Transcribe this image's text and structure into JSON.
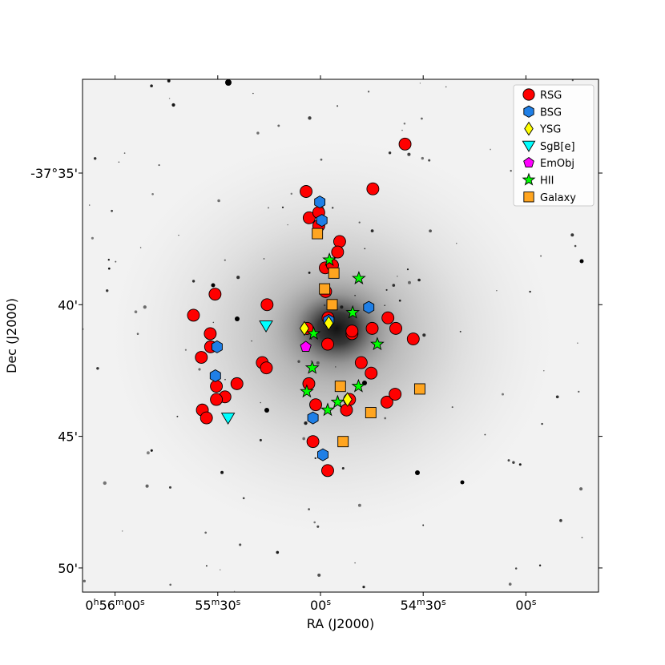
{
  "chart_data": {
    "type": "scatter",
    "title": "",
    "xlabel": "RA (J2000)",
    "ylabel": "Dec (J2000)",
    "background": "grayscale galaxy image",
    "x_unit": "seconds of RA offset from 0h56m00s (increasing to the west)",
    "y_unit": "arcminutes below -37°",
    "xlim": [
      0,
      121
    ],
    "ylim": [
      33.4,
      51.9
    ],
    "x_ticks": [
      {
        "value": 0,
        "label": "0h56m00s"
      },
      {
        "value": 30,
        "label": "55m30s"
      },
      {
        "value": 60,
        "label": "00s"
      },
      {
        "value": 90,
        "label": "54m30s"
      },
      {
        "value": 120,
        "label": "00s"
      }
    ],
    "y_ticks": [
      {
        "value": 35,
        "label": "-37°35'"
      },
      {
        "value": 40,
        "label": "40'"
      },
      {
        "value": 45,
        "label": "45'"
      },
      {
        "value": 50,
        "label": "50'"
      }
    ],
    "legend_position": "top-right",
    "series": [
      {
        "name": "RSG",
        "marker": "circle",
        "color": "#ff0000",
        "points": [
          [
            75.3,
            35.6
          ],
          [
            55.8,
            35.7
          ],
          [
            84.7,
            33.9
          ],
          [
            56.7,
            36.7
          ],
          [
            59.5,
            36.5
          ],
          [
            59.5,
            37.0
          ],
          [
            65.6,
            37.6
          ],
          [
            65.0,
            38.0
          ],
          [
            61.4,
            38.6
          ],
          [
            63.5,
            38.5
          ],
          [
            61.5,
            39.5
          ],
          [
            29.2,
            39.6
          ],
          [
            44.4,
            40.0
          ],
          [
            22.9,
            40.4
          ],
          [
            56.1,
            40.9
          ],
          [
            62.2,
            40.5
          ],
          [
            69.2,
            41.1
          ],
          [
            69.2,
            41.0
          ],
          [
            62.1,
            41.5
          ],
          [
            75.1,
            40.9
          ],
          [
            79.7,
            40.5
          ],
          [
            82.0,
            40.9
          ],
          [
            27.8,
            41.1
          ],
          [
            27.9,
            41.6
          ],
          [
            25.2,
            42.0
          ],
          [
            43.0,
            42.2
          ],
          [
            44.2,
            42.4
          ],
          [
            71.9,
            42.2
          ],
          [
            74.8,
            42.6
          ],
          [
            29.6,
            43.1
          ],
          [
            35.6,
            43.0
          ],
          [
            32.1,
            43.5
          ],
          [
            29.6,
            43.6
          ],
          [
            56.6,
            43.0
          ],
          [
            58.6,
            43.8
          ],
          [
            68.5,
            43.6
          ],
          [
            79.4,
            43.7
          ],
          [
            81.8,
            43.4
          ],
          [
            67.6,
            44.0
          ],
          [
            25.5,
            44.0
          ],
          [
            26.7,
            44.3
          ],
          [
            87.1,
            41.3
          ],
          [
            57.8,
            45.2
          ],
          [
            62.1,
            46.3
          ]
        ]
      },
      {
        "name": "BSG",
        "marker": "hexagon",
        "color": "#1f7fe6",
        "points": [
          [
            59.8,
            36.1
          ],
          [
            60.4,
            36.8
          ],
          [
            62.4,
            40.6
          ],
          [
            74.1,
            40.1
          ],
          [
            29.8,
            41.6
          ],
          [
            29.3,
            42.7
          ],
          [
            57.8,
            44.3
          ],
          [
            60.7,
            45.7
          ]
        ]
      },
      {
        "name": "YSG",
        "marker": "diamond",
        "color": "#ffff00",
        "points": [
          [
            55.3,
            40.9
          ],
          [
            62.4,
            40.7
          ],
          [
            67.9,
            43.6
          ]
        ]
      },
      {
        "name": "SgB[e]",
        "marker": "triangle-down",
        "color": "#00ffff",
        "points": [
          [
            44.1,
            40.8
          ],
          [
            33.0,
            44.3
          ]
        ]
      },
      {
        "name": "EmObj",
        "marker": "pentagon",
        "color": "#ff00ff",
        "points": [
          [
            55.7,
            41.6
          ]
        ]
      },
      {
        "name": "HII",
        "marker": "star",
        "color": "#00ff00",
        "points": [
          [
            62.6,
            38.3
          ],
          [
            71.2,
            39.0
          ],
          [
            69.4,
            40.3
          ],
          [
            58.0,
            41.1
          ],
          [
            76.6,
            41.5
          ],
          [
            57.6,
            42.4
          ],
          [
            71.1,
            43.1
          ],
          [
            56.0,
            43.3
          ],
          [
            65.0,
            43.7
          ],
          [
            62.1,
            44.0
          ]
        ]
      },
      {
        "name": "Galaxy",
        "marker": "square",
        "color": "#ffa520",
        "points": [
          [
            59.1,
            37.3
          ],
          [
            63.9,
            38.8
          ],
          [
            61.2,
            39.4
          ],
          [
            63.4,
            40.0
          ],
          [
            65.8,
            43.1
          ],
          [
            74.7,
            44.1
          ],
          [
            89.0,
            43.2
          ],
          [
            66.6,
            45.2
          ]
        ]
      }
    ]
  }
}
